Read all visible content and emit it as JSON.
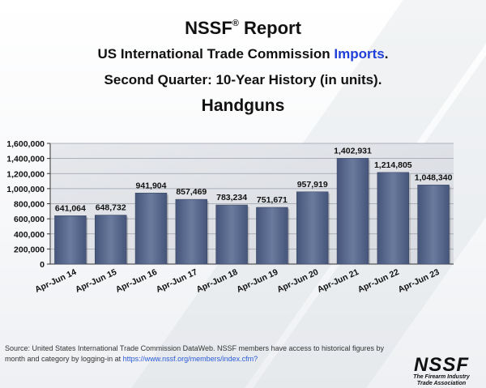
{
  "header": {
    "report_title": "NSSF",
    "report_registered": "®",
    "report_suffix": "Report",
    "subtitle_prefix": "US International Trade Commission",
    "subtitle_accent": "Imports",
    "subtitle_suffix": ".",
    "subtitle_line2": "Second Quarter: 10-Year History (in units)."
  },
  "accent_color": "#1f3fd9",
  "chart_data": {
    "type": "bar",
    "title": "Handguns",
    "xlabel": "",
    "ylabel": "",
    "categories": [
      "Apr-Jun 14",
      "Apr-Jun 15",
      "Apr-Jun 16",
      "Apr-Jun 17",
      "Apr-Jun 18",
      "Apr-Jun 19",
      "Apr-Jun 20",
      "Apr-Jun 21",
      "Apr-Jun 22",
      "Apr-Jun 23"
    ],
    "values": [
      641064,
      648732,
      941904,
      857469,
      783234,
      751671,
      957919,
      1402931,
      1214805,
      1048340
    ],
    "value_labels": [
      "641,064",
      "648,732",
      "941,904",
      "857,469",
      "783,234",
      "751,671",
      "957,919",
      "1,402,931",
      "1,214,805",
      "1,048,340"
    ],
    "ylim": [
      0,
      1600000
    ],
    "yticks": [
      0,
      200000,
      400000,
      600000,
      800000,
      1000000,
      1200000,
      1400000,
      1600000
    ],
    "ytick_labels": [
      "0",
      "200,000",
      "400,000",
      "600,000",
      "800,000",
      "1,000,000",
      "1,200,000",
      "1,400,000",
      "1,600,000"
    ],
    "grid": true,
    "bar_color": "#5b6b8c"
  },
  "source": {
    "text": "Source: United States International Trade Commission DataWeb. NSSF members have access to historical figures by month and category by logging-in at",
    "link": "https://www.nssf.org/members/index.cfm?"
  },
  "logo": {
    "mark": "NSSF",
    "tagline_1": "The Firearm Industry",
    "tagline_2": "Trade Association"
  }
}
